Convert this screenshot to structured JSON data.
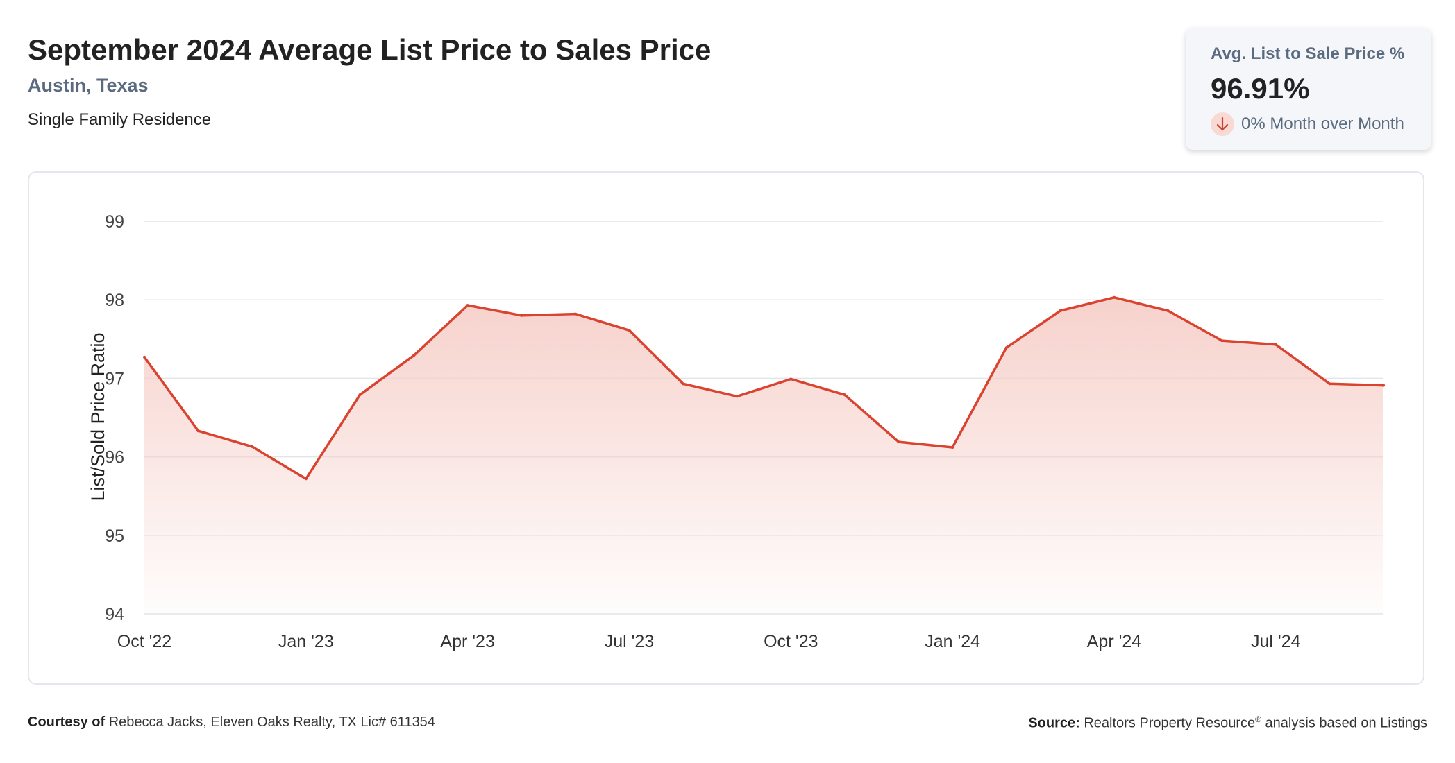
{
  "header": {
    "title": "September 2024 Average List Price to Sales Price",
    "location": "Austin, Texas",
    "subtitle": "Single Family Residence"
  },
  "kpi": {
    "label": "Avg. List to Sale Price %",
    "value": "96.91%",
    "change": "0% Month over Month",
    "direction": "down"
  },
  "footer": {
    "courtesy_label": "Courtesy of",
    "courtesy_text": "Rebecca Jacks, Eleven Oaks Realty, TX Lic# 611354",
    "source_label": "Source:",
    "source_text": "Realtors Property Resource",
    "source_mark": "®",
    "source_suffix": "analysis based on Listings"
  },
  "colors": {
    "line": "#d9432f",
    "area_top": "#f6cfc9",
    "grid": "#e2e5ea",
    "text_muted": "#5b6b7f",
    "kpi_bg": "#f4f6fa"
  },
  "chart_data": {
    "type": "area",
    "ylabel": "List/Sold Price Ratio",
    "xlabel": "",
    "ylim": [
      94,
      99
    ],
    "yticks": [
      94,
      95,
      96,
      97,
      98,
      99
    ],
    "x_tick_labels": [
      "Oct '22",
      "Jan '23",
      "Apr '23",
      "Jul '23",
      "Oct '23",
      "Jan '24",
      "Apr '24",
      "Jul '24"
    ],
    "x": [
      "2022-10",
      "2022-11",
      "2022-12",
      "2023-01",
      "2023-02",
      "2023-03",
      "2023-04",
      "2023-05",
      "2023-06",
      "2023-07",
      "2023-08",
      "2023-09",
      "2023-10",
      "2023-11",
      "2023-12",
      "2024-01",
      "2024-02",
      "2024-03",
      "2024-04",
      "2024-05",
      "2024-06",
      "2024-07",
      "2024-08",
      "2024-09"
    ],
    "series": [
      {
        "values": [
          97.27,
          96.33,
          96.13,
          95.72,
          96.79,
          97.29,
          97.93,
          97.8,
          97.82,
          97.61,
          96.93,
          96.77,
          96.99,
          96.79,
          96.19,
          96.12,
          97.39,
          97.86,
          98.03,
          97.86,
          97.48,
          97.43,
          96.93,
          96.91
        ]
      }
    ],
    "grid": true,
    "legend": "none"
  }
}
